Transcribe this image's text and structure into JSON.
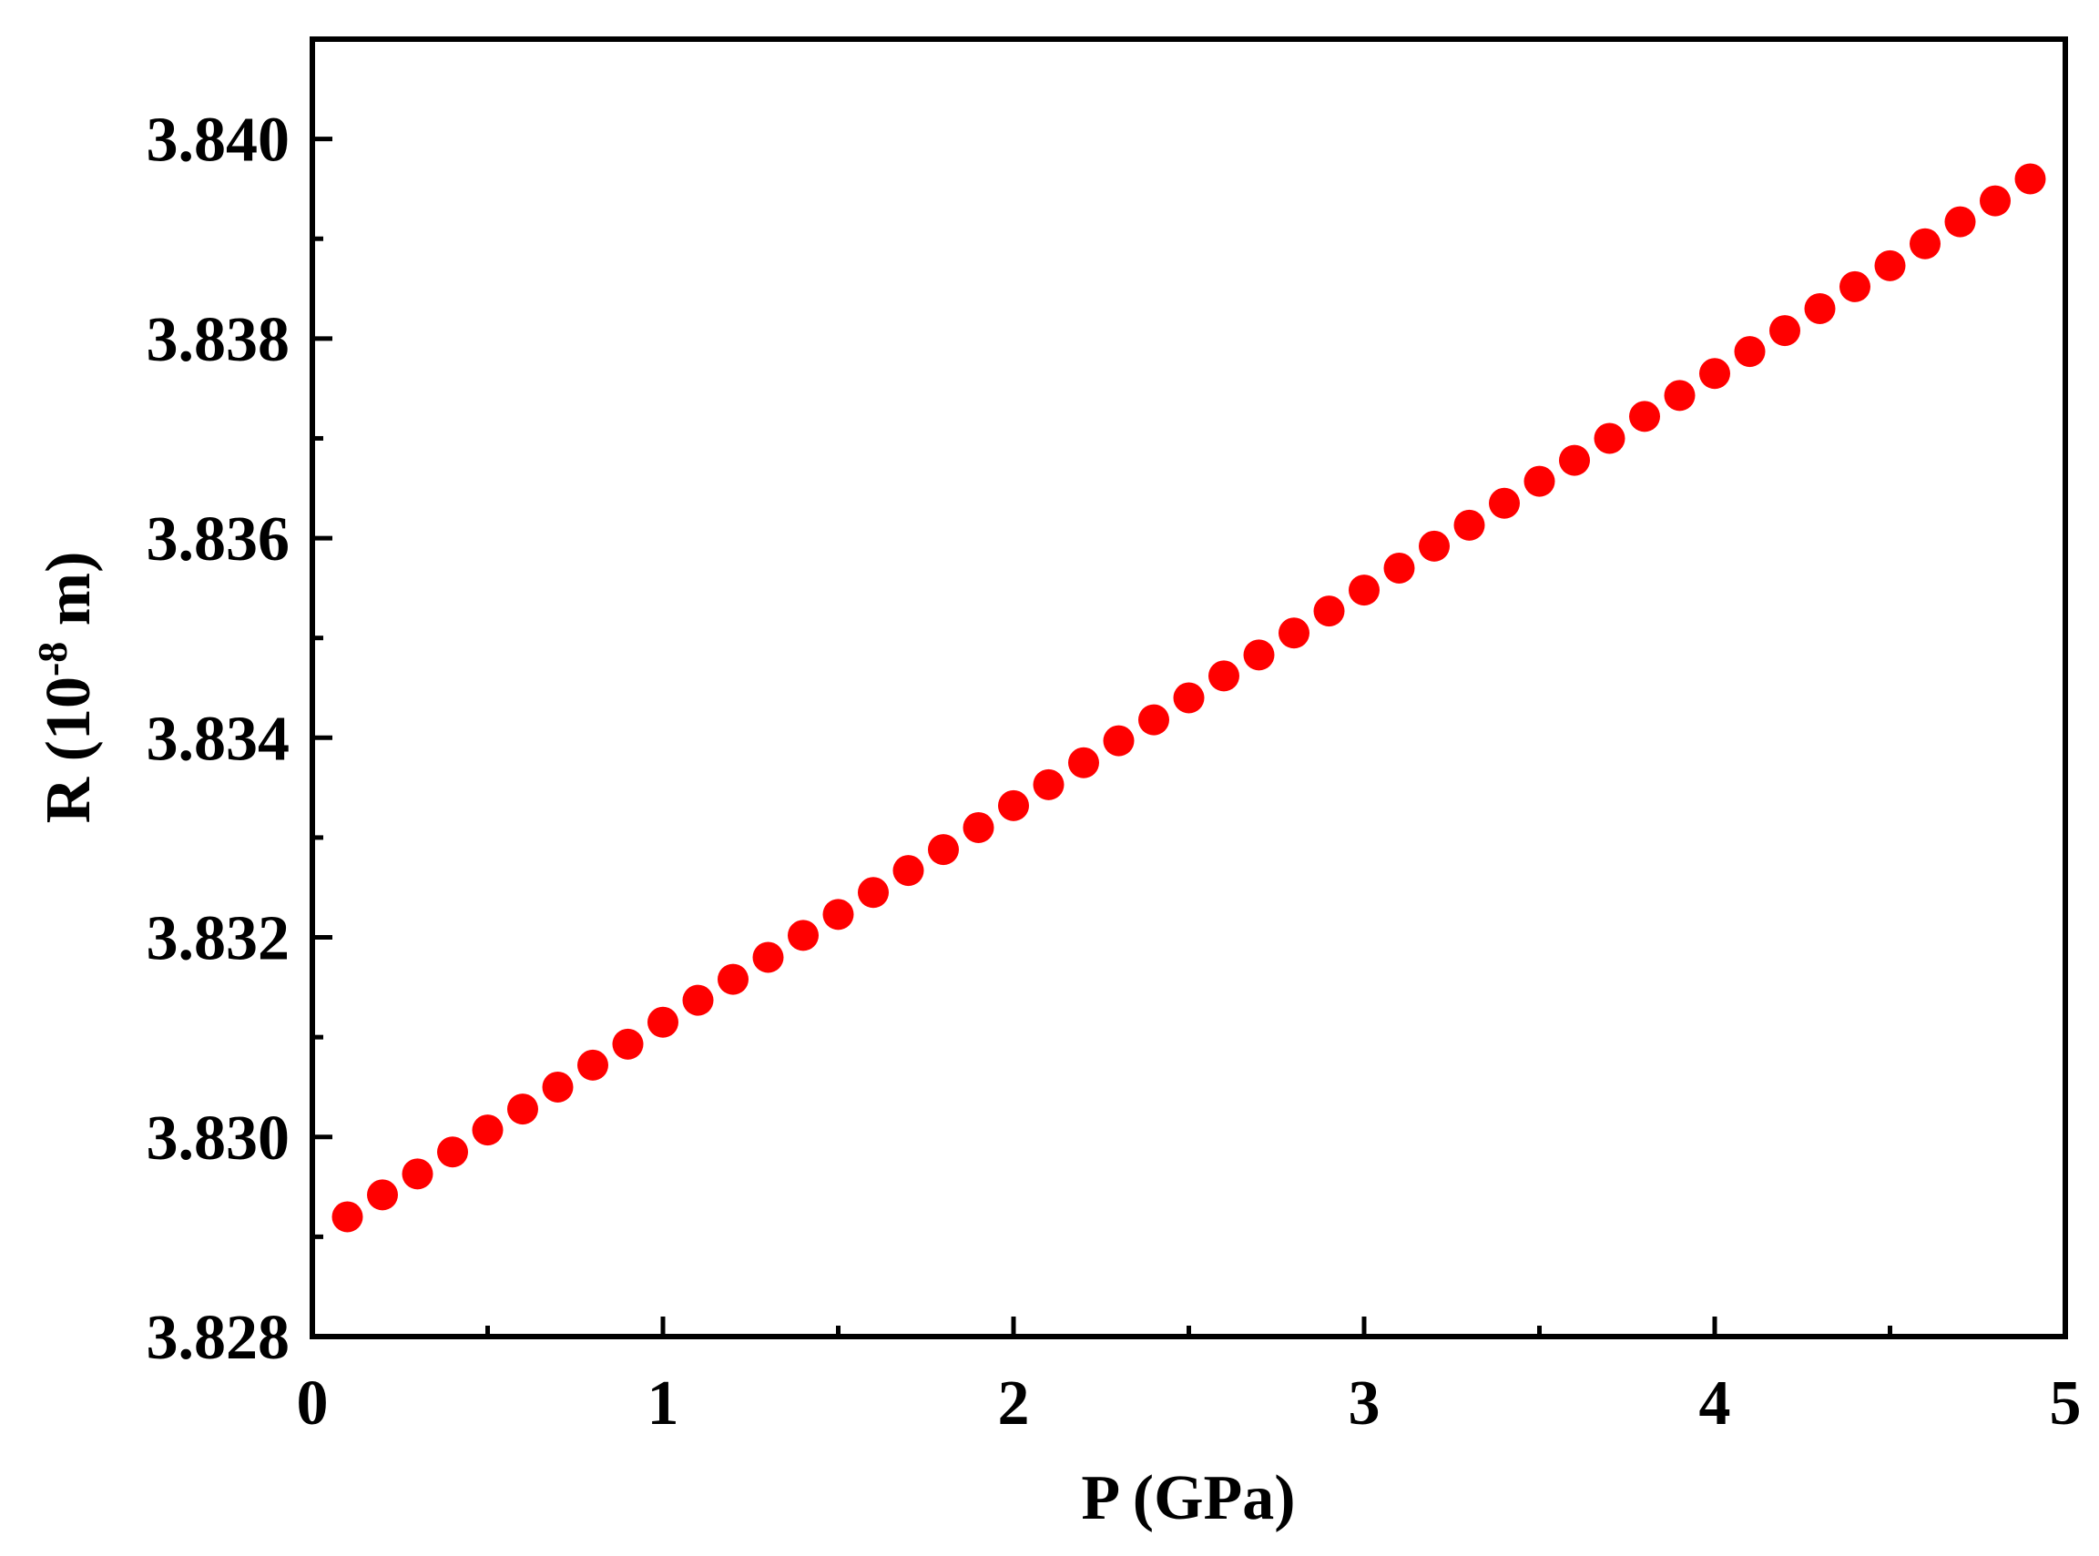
{
  "chart_data": {
    "type": "scatter",
    "title": "",
    "xlabel": "P (GPa)",
    "ylabel": {
      "prefix": "R (10",
      "exponent": "-8",
      "suffix": " m)"
    },
    "xlim": [
      0,
      5
    ],
    "ylim": [
      3.828,
      3.841
    ],
    "x_major_ticks": [
      0,
      1,
      2,
      3,
      4,
      5
    ],
    "x_tick_labels": [
      "0",
      "1",
      "2",
      "3",
      "4",
      "5"
    ],
    "x_minor_ticks": [
      0.5,
      1.5,
      2.5,
      3.5,
      4.5
    ],
    "y_major_ticks": [
      3.828,
      3.83,
      3.832,
      3.834,
      3.836,
      3.838,
      3.84
    ],
    "y_tick_labels": [
      "3.828",
      "3.830",
      "3.832",
      "3.834",
      "3.836",
      "3.838",
      "3.840"
    ],
    "y_minor_ticks": [
      3.829,
      3.831,
      3.833,
      3.835,
      3.837,
      3.839
    ],
    "grid": false,
    "legend": "none",
    "marker_color": "#ff0000",
    "series": [
      {
        "x": [
          0.1,
          0.2,
          0.3,
          0.4,
          0.5,
          0.6,
          0.7,
          0.8,
          0.9,
          1.0,
          1.1,
          1.2,
          1.3,
          1.4,
          1.5,
          1.6,
          1.7,
          1.8,
          1.9,
          2.0,
          2.1,
          2.2,
          2.3,
          2.4,
          2.5,
          2.6,
          2.7,
          2.8,
          2.9,
          3.0,
          3.1,
          3.2,
          3.3,
          3.4,
          3.5,
          3.6,
          3.7,
          3.8,
          3.9,
          4.0,
          4.1,
          4.2,
          4.3,
          4.4,
          4.5,
          4.6,
          4.7,
          4.8,
          4.9
        ],
        "y": [
          3.8292,
          3.82942,
          3.82963,
          3.82985,
          3.83007,
          3.83028,
          3.8305,
          3.83072,
          3.83093,
          3.83115,
          3.83137,
          3.83158,
          3.8318,
          3.83202,
          3.83223,
          3.83245,
          3.83267,
          3.83288,
          3.8331,
          3.83332,
          3.83353,
          3.83375,
          3.83397,
          3.83418,
          3.8344,
          3.83462,
          3.83483,
          3.83505,
          3.83527,
          3.83548,
          3.8357,
          3.83592,
          3.83613,
          3.83635,
          3.83657,
          3.83678,
          3.837,
          3.83722,
          3.83743,
          3.83765,
          3.83787,
          3.83808,
          3.8383,
          3.83852,
          3.83873,
          3.83895,
          3.83917,
          3.83938,
          3.8396
        ]
      }
    ]
  }
}
